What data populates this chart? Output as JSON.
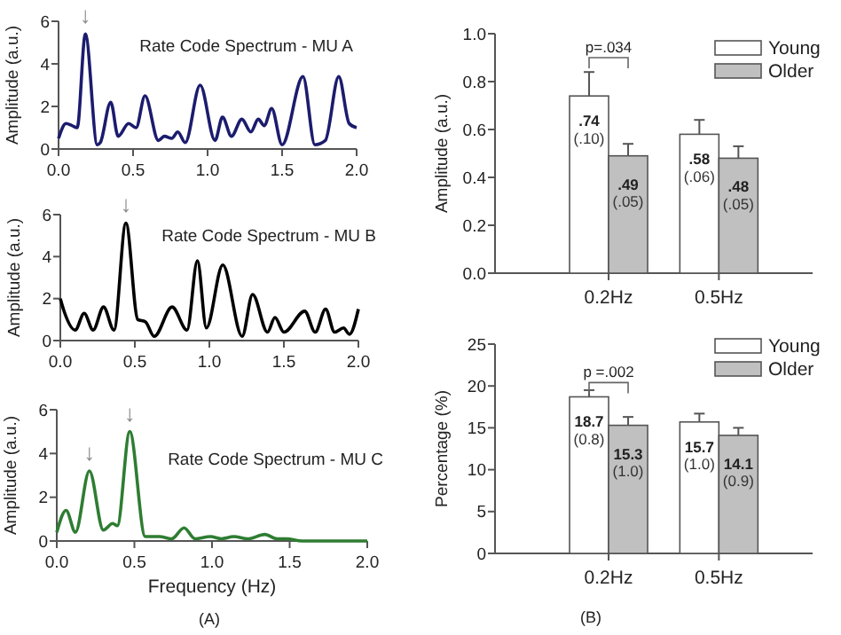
{
  "chart_data": [
    {
      "type": "line",
      "title": "Rate Code Spectrum - MU A",
      "ylabel": "Amplitude (a.u.)",
      "xlim": [
        0,
        2
      ],
      "ylim": [
        0,
        6
      ],
      "xticks": [
        {
          "value": 0,
          "label": "0.0"
        },
        {
          "value": 0.5,
          "label": "0.5"
        },
        {
          "value": 1,
          "label": "1.0"
        },
        {
          "value": 1.5,
          "label": "1.5"
        },
        {
          "value": 2,
          "label": "2.0"
        }
      ],
      "yticks": [
        0,
        2,
        4,
        6
      ],
      "x": [
        0,
        0.05,
        0.09,
        0.125,
        0.18,
        0.26,
        0.28,
        0.35,
        0.4,
        0.47,
        0.52,
        0.58,
        0.67,
        0.71,
        0.76,
        0.8,
        0.85,
        0.95,
        1.05,
        1.1,
        1.16,
        1.23,
        1.29,
        1.34,
        1.38,
        1.43,
        1.5,
        1.64,
        1.72,
        1.79,
        1.88,
        1.95,
        2.0
      ],
      "series": [
        {
          "color": "#1c1c6e",
          "values": [
            0.5,
            1.2,
            1.1,
            1.0,
            5.4,
            0.2,
            0.3,
            2.2,
            0.6,
            1.2,
            1.0,
            2.5,
            0.4,
            0.6,
            0.5,
            0.8,
            0.3,
            3.0,
            0.4,
            1.5,
            0.6,
            1.4,
            0.8,
            1.4,
            1.1,
            1.9,
            0.2,
            3.4,
            0.2,
            0.4,
            3.4,
            1.2,
            1.0
          ]
        }
      ],
      "annotations": [
        {
          "text": "↓",
          "x": 0.18,
          "y": 5.4
        }
      ]
    },
    {
      "type": "line",
      "title": "Rate Code Spectrum - MU B",
      "ylabel": "Amplitude (a.u.)",
      "xlim": [
        0,
        2
      ],
      "ylim": [
        0,
        6
      ],
      "xticks": [
        {
          "value": 0,
          "label": "0.0"
        },
        {
          "value": 0.5,
          "label": "0.5"
        },
        {
          "value": 1,
          "label": "1.0"
        },
        {
          "value": 1.5,
          "label": "1.5"
        },
        {
          "value": 2,
          "label": "2.0"
        }
      ],
      "yticks": [
        0,
        2,
        4,
        6
      ],
      "x": [
        0,
        0.03,
        0.1,
        0.16,
        0.22,
        0.29,
        0.36,
        0.44,
        0.52,
        0.57,
        0.63,
        0.75,
        0.85,
        0.92,
        0.98,
        1.09,
        1.22,
        1.29,
        1.39,
        1.44,
        1.5,
        1.64,
        1.71,
        1.78,
        1.84,
        1.9,
        1.94,
        2.0
      ],
      "series": [
        {
          "color": "#000000",
          "values": [
            2.0,
            1.3,
            0.5,
            1.3,
            0.5,
            1.6,
            0.5,
            5.6,
            1.0,
            0.9,
            0.2,
            1.6,
            0.5,
            3.8,
            0.6,
            3.6,
            0.2,
            2.2,
            0.4,
            1.1,
            0.4,
            1.4,
            0.4,
            1.5,
            0.4,
            0.6,
            0.3,
            1.5
          ]
        }
      ],
      "annotations": [
        {
          "text": "↓",
          "x": 0.44,
          "y": 5.6
        }
      ]
    },
    {
      "type": "line",
      "title": "Rate Code Spectrum - MU C",
      "ylabel": "Amplitude (a.u.)",
      "xlabel": "Frequency (Hz)",
      "xlim": [
        0,
        2
      ],
      "ylim": [
        0,
        6
      ],
      "xticks": [
        {
          "value": 0,
          "label": "0.0"
        },
        {
          "value": 0.5,
          "label": "0.5"
        },
        {
          "value": 1,
          "label": "1.0"
        },
        {
          "value": 1.5,
          "label": "1.5"
        },
        {
          "value": 2,
          "label": "2.0"
        }
      ],
      "yticks": [
        0,
        2,
        4,
        6
      ],
      "x": [
        0,
        0.06,
        0.12,
        0.21,
        0.3,
        0.36,
        0.39,
        0.47,
        0.57,
        0.66,
        0.74,
        0.82,
        0.89,
        0.99,
        1.06,
        1.14,
        1.23,
        1.34,
        1.42,
        1.48,
        1.58,
        2.0
      ],
      "series": [
        {
          "color": "#2e7d32",
          "values": [
            0.4,
            1.4,
            0.4,
            3.2,
            0.5,
            0.8,
            0.7,
            5.0,
            0.2,
            0.2,
            0.1,
            0.6,
            0.1,
            0.2,
            0.1,
            0.2,
            0.1,
            0.3,
            0.1,
            0.1,
            0.0,
            0.0
          ]
        }
      ],
      "annotations": [
        {
          "text": "↓",
          "x": 0.21,
          "y": 3.2
        },
        {
          "text": "↓",
          "x": 0.47,
          "y": 5.0
        },
        "(A)"
      ]
    },
    {
      "type": "bar",
      "ylabel": "Amplitude (a.u.)",
      "categories": [
        "0.2Hz",
        "0.5Hz"
      ],
      "ylim": [
        0,
        1
      ],
      "yticks": [
        {
          "value": 0,
          "label": "0.0"
        },
        0.2,
        0.4,
        0.6,
        0.8,
        {
          "value": 1,
          "label": "1.0"
        }
      ],
      "legend": "top right",
      "series": [
        {
          "name": "Young",
          "color": "#ffffff",
          "values": [
            0.74,
            0.58
          ],
          "errors": [
            0.1,
            0.06
          ],
          "value_labels": [
            ".74 (.10)",
            ".58 (.06)"
          ]
        },
        {
          "name": "Older",
          "color": "#c0c0c0",
          "values": [
            0.49,
            0.48
          ],
          "errors": [
            0.05,
            0.05
          ],
          "value_labels": [
            ".49 (.05)",
            ".48 (.05)"
          ]
        }
      ],
      "annotations": [
        "p=.034"
      ]
    },
    {
      "type": "bar",
      "ylabel": "Percentage (%)",
      "categories": [
        "0.2Hz",
        "0.5Hz"
      ],
      "ylim": [
        0,
        25
      ],
      "yticks": [
        0,
        5,
        10,
        15,
        20,
        25
      ],
      "legend": "top right",
      "series": [
        {
          "name": "Young",
          "color": "#ffffff",
          "values": [
            18.7,
            15.7
          ],
          "errors": [
            0.8,
            1.0
          ],
          "value_labels": [
            "18.7 (0.8)",
            "15.7 (1.0)"
          ]
        },
        {
          "name": "Older",
          "color": "#c0c0c0",
          "values": [
            15.3,
            14.1
          ],
          "errors": [
            1.0,
            0.9
          ],
          "value_labels": [
            "15.3 (1.0)",
            "14.1 (0.9)"
          ]
        }
      ],
      "annotations": [
        "p =.002",
        "(B)"
      ]
    }
  ]
}
